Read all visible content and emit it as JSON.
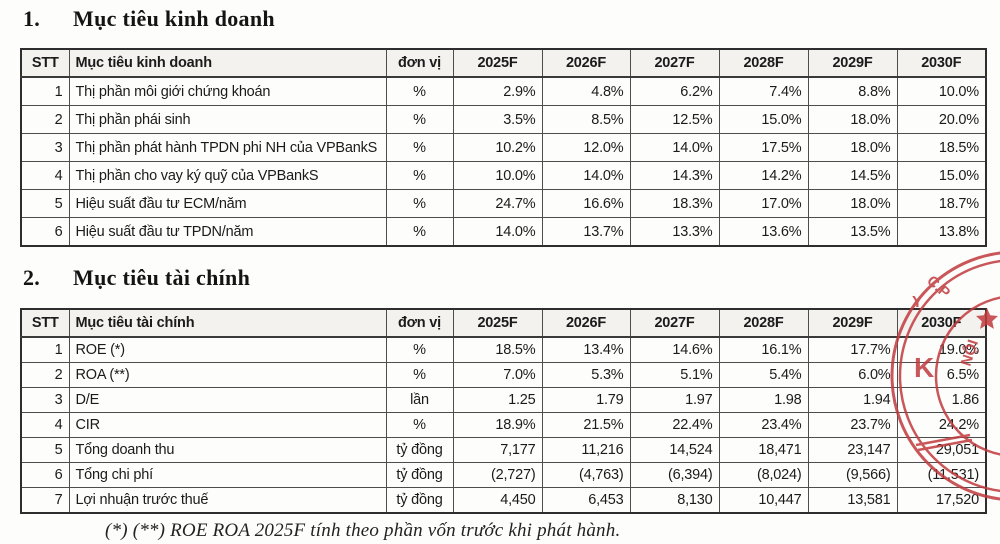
{
  "page": {
    "section1": {
      "number": "1.",
      "title": "Mục tiêu kinh doanh"
    },
    "section2": {
      "number": "2.",
      "title": "Mục tiêu tài chính"
    },
    "footnote": "(*) (**) ROE ROA 2025F tính theo phần vốn trước khi phát hành."
  },
  "table1": {
    "headers": [
      "STT",
      "Mục tiêu kinh doanh",
      "đơn vị",
      "2025F",
      "2026F",
      "2027F",
      "2028F",
      "2029F",
      "2030F"
    ],
    "rows": [
      [
        "1",
        "Thị phần môi giới chứng khoán",
        "%",
        "2.9%",
        "4.8%",
        "6.2%",
        "7.4%",
        "8.8%",
        "10.0%"
      ],
      [
        "2",
        "Thị phần phái sinh",
        "%",
        "3.5%",
        "8.5%",
        "12.5%",
        "15.0%",
        "18.0%",
        "20.0%"
      ],
      [
        "3",
        "Thị phần phát hành TPDN phi NH của VPBankS",
        "%",
        "10.2%",
        "12.0%",
        "14.0%",
        "17.5%",
        "18.0%",
        "18.5%"
      ],
      [
        "4",
        "Thị phần cho vay ký quỹ của VPBankS",
        "%",
        "10.0%",
        "14.0%",
        "14.3%",
        "14.2%",
        "14.5%",
        "15.0%"
      ],
      [
        "5",
        "Hiệu suất đầu tư ECM/năm",
        "%",
        "24.7%",
        "16.6%",
        "18.3%",
        "17.0%",
        "18.0%",
        "18.7%"
      ],
      [
        "6",
        "Hiệu suất đầu tư TPDN/năm",
        "%",
        "14.0%",
        "13.7%",
        "13.3%",
        "13.6%",
        "13.5%",
        "13.8%"
      ]
    ]
  },
  "table2": {
    "headers": [
      "STT",
      "Mục tiêu tài chính",
      "đơn vị",
      "2025F",
      "2026F",
      "2027F",
      "2028F",
      "2029F",
      "2030F"
    ],
    "rows": [
      [
        "1",
        "ROE (*)",
        "%",
        "18.5%",
        "13.4%",
        "14.6%",
        "16.1%",
        "17.7%",
        "19.0%"
      ],
      [
        "2",
        "ROA (**)",
        "%",
        "7.0%",
        "5.3%",
        "5.1%",
        "5.4%",
        "6.0%",
        "6.5%"
      ],
      [
        "3",
        "D/E",
        "lần",
        "1.25",
        "1.79",
        "1.97",
        "1.98",
        "1.94",
        "1.86"
      ],
      [
        "4",
        "CIR",
        "%",
        "18.9%",
        "21.5%",
        "22.4%",
        "23.4%",
        "23.7%",
        "24.2%"
      ],
      [
        "5",
        "Tổng doanh thu",
        "tỷ đồng",
        "7,177",
        "11,216",
        "14,524",
        "18,471",
        "23,147",
        "29,051"
      ],
      [
        "6",
        "Tổng chi phí",
        "tỷ đồng",
        "(2,727)",
        "(4,763)",
        "(6,394)",
        "(8,024)",
        "(9,566)",
        "(11,531)"
      ],
      [
        "7",
        "Lợi nhuận trước thuế",
        "tỷ đồng",
        "4,450",
        "6,453",
        "8,130",
        "10,447",
        "13,581",
        "17,520"
      ]
    ]
  },
  "stamp": {
    "color": "#c13b3e",
    "fragments": {
      "top": "C.P",
      "y": "Y",
      "k": "K",
      "noi": "NỘI"
    }
  }
}
